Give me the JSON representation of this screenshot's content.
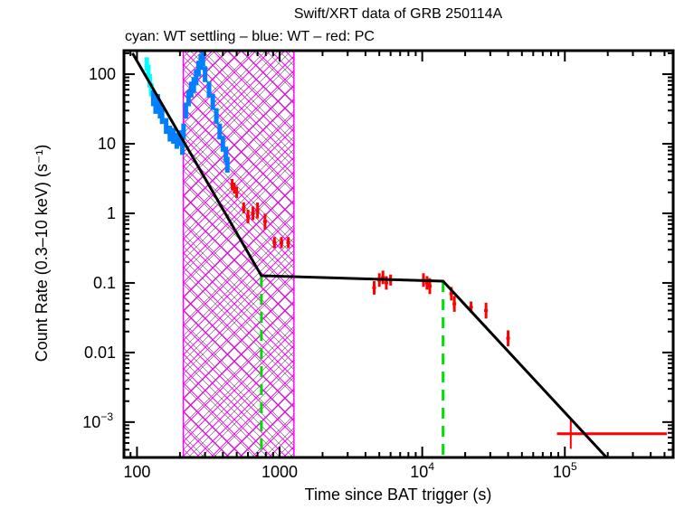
{
  "chart_data": {
    "type": "scatter",
    "title": "Swift/XRT data of GRB 250114A",
    "subtitle": "cyan: WT settling – blue: WT – red: PC",
    "xlabel": "Time since BAT trigger (s)",
    "ylabel": "Count Rate (0.3–10 keV) (s⁻¹)",
    "xscale": "log",
    "yscale": "log",
    "xlim": [
      81,
      575000
    ],
    "ylim": [
      0.00031,
      218
    ],
    "x_ticks": [
      {
        "v": 100,
        "label": "100"
      },
      {
        "v": 1000,
        "label": "1000"
      },
      {
        "v": 10000,
        "label": "10",
        "exp": "4"
      },
      {
        "v": 100000,
        "label": "10",
        "exp": "5"
      }
    ],
    "y_ticks": [
      {
        "v": 100,
        "label": "100"
      },
      {
        "v": 10,
        "label": "10"
      },
      {
        "v": 1,
        "label": "1"
      },
      {
        "v": 0.1,
        "label": "0.1"
      },
      {
        "v": 0.01,
        "label": "0.01"
      },
      {
        "v": 0.001,
        "label": "10",
        "exp": "−3"
      }
    ],
    "shaded_intervals": [
      {
        "name": "gray-hatch",
        "from": 211,
        "to": 1260,
        "color": "#555555"
      },
      {
        "name": "magenta-hatch",
        "from": 211,
        "to": 1260,
        "color": "#ff00ff"
      }
    ],
    "break_lines": [
      {
        "t": 745,
        "color": "#00dd00"
      },
      {
        "t": 14000,
        "color": "#00dd00"
      }
    ],
    "model": {
      "color": "#000000",
      "points": [
        [
          93,
          200
        ],
        [
          745,
          0.127
        ],
        [
          14000,
          0.106
        ],
        [
          196000,
          0.00031
        ]
      ]
    },
    "series": [
      {
        "name": "WT settling",
        "color": "#00ffff",
        "points": [
          [
            117,
            140,
            0.25
          ],
          [
            120,
            110,
            0.25
          ],
          [
            123,
            80,
            0.25
          ],
          [
            126,
            60,
            0.25
          ]
        ]
      },
      {
        "name": "WT",
        "color": "#0080ff",
        "points": [
          [
            130,
            45,
            0.3
          ],
          [
            135,
            35,
            0.3
          ],
          [
            140,
            40,
            0.3
          ],
          [
            145,
            30,
            0.3
          ],
          [
            150,
            25,
            0.3
          ],
          [
            160,
            18,
            0.3
          ],
          [
            170,
            14,
            0.3
          ],
          [
            180,
            13,
            0.3
          ],
          [
            190,
            11,
            0.3
          ],
          [
            200,
            12,
            0.3
          ],
          [
            208,
            9,
            0.3
          ],
          [
            212,
            15,
            0.3
          ],
          [
            220,
            30,
            0.3
          ],
          [
            230,
            45,
            0.3
          ],
          [
            240,
            60,
            0.3
          ],
          [
            250,
            70,
            0.3
          ],
          [
            260,
            90,
            0.3
          ],
          [
            270,
            120,
            0.3
          ],
          [
            280,
            150,
            0.3
          ],
          [
            290,
            170,
            0.3
          ],
          [
            300,
            100,
            0.3
          ],
          [
            320,
            60,
            0.3
          ],
          [
            340,
            40,
            0.3
          ],
          [
            360,
            25,
            0.3
          ],
          [
            380,
            15,
            0.3
          ],
          [
            400,
            10,
            0.3
          ],
          [
            420,
            7,
            0.3
          ],
          [
            430,
            5,
            0.3
          ]
        ]
      },
      {
        "name": "PC",
        "color": "#ff0000",
        "points": [
          [
            465,
            2.6,
            0.2
          ],
          [
            480,
            2.3,
            0.2
          ],
          [
            500,
            2.0,
            0.2
          ],
          [
            560,
            1.2,
            0.2
          ],
          [
            600,
            0.9,
            0.25
          ],
          [
            650,
            1.0,
            0.25
          ],
          [
            700,
            1.1,
            0.3
          ],
          [
            790,
            0.76,
            0.3
          ],
          [
            920,
            0.38,
            0.2
          ],
          [
            1030,
            0.38,
            0.2
          ],
          [
            1150,
            0.38,
            0.2
          ],
          [
            4600,
            0.085,
            0.25
          ],
          [
            5000,
            0.11,
            0.25
          ],
          [
            5300,
            0.12,
            0.25
          ],
          [
            5600,
            0.1,
            0.25
          ],
          [
            6000,
            0.11,
            0.2
          ],
          [
            10200,
            0.11,
            0.25
          ],
          [
            10800,
            0.1,
            0.25
          ],
          [
            11300,
            0.09,
            0.3
          ],
          [
            16000,
            0.07,
            0.25
          ],
          [
            16800,
            0.05,
            0.3
          ],
          [
            22000,
            0.045,
            0.2
          ],
          [
            28000,
            0.04,
            0.3
          ],
          [
            40000,
            0.016,
            0.3
          ],
          [
            110000,
            0.00068,
            0.4
          ]
        ]
      }
    ],
    "wide_bin": {
      "t": 110000,
      "t_lo": 88000,
      "t_hi": 520000,
      "r": 0.00068
    },
    "grid": false,
    "legend": "none (described in subtitle)"
  }
}
